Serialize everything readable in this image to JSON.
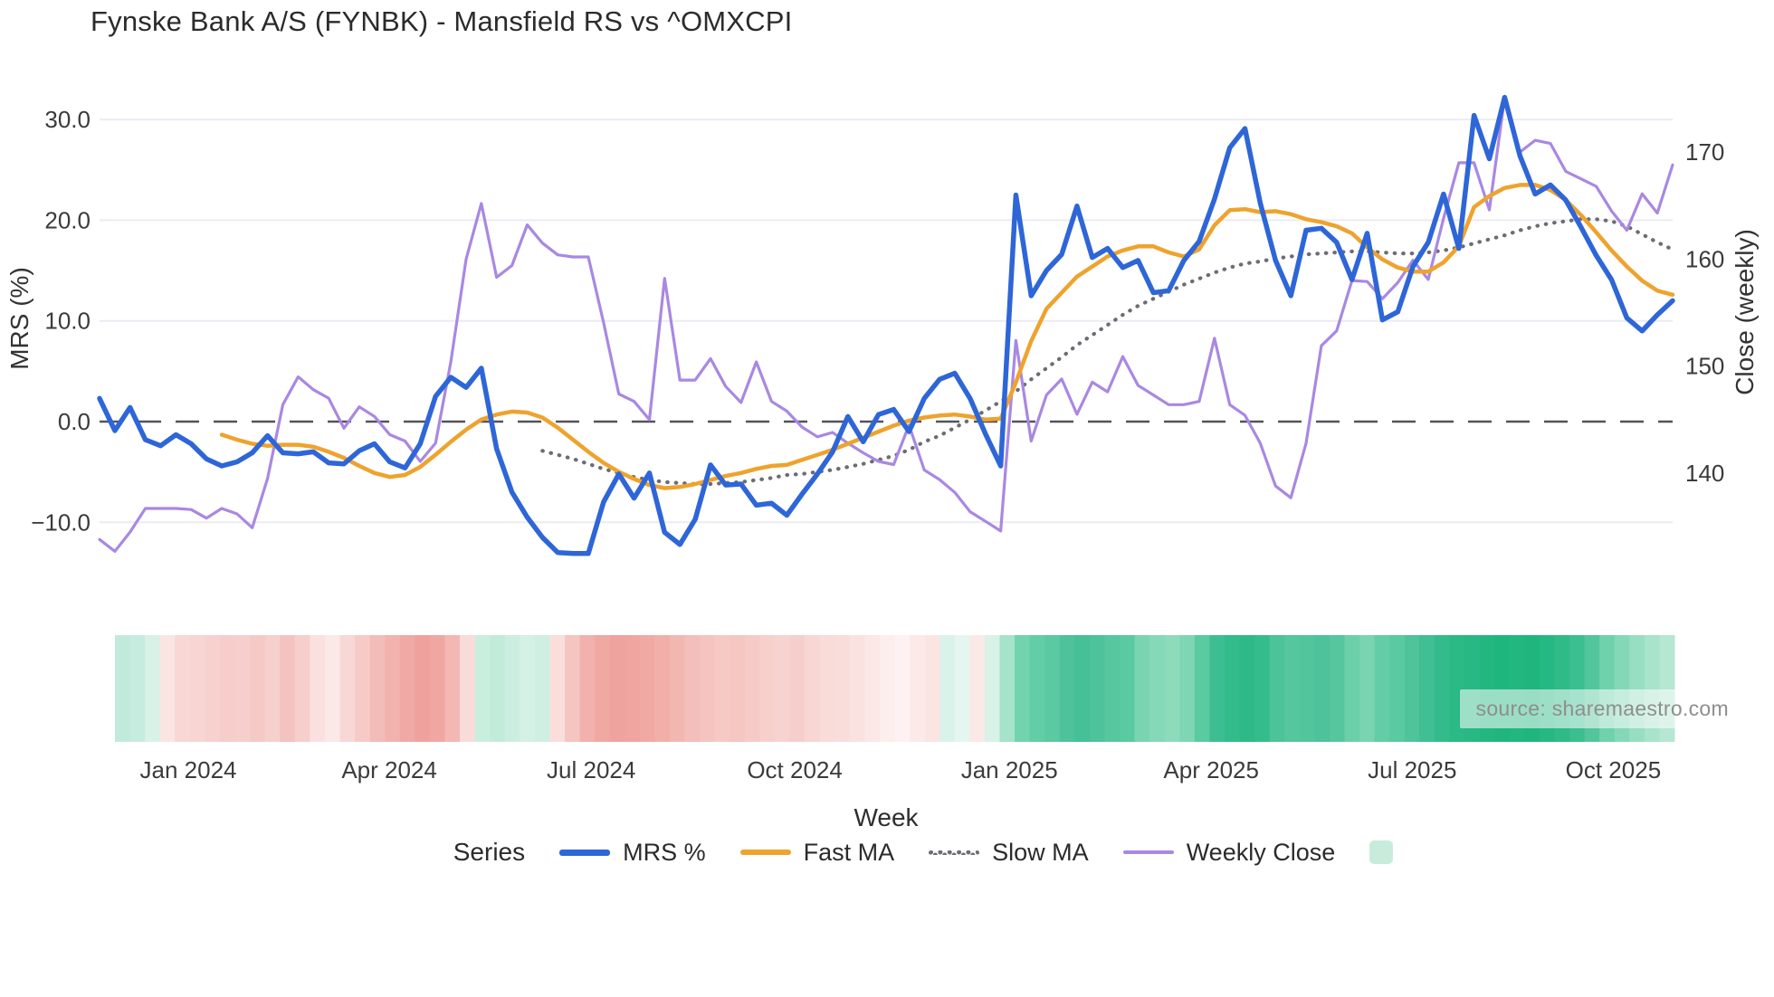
{
  "title": "Fynske Bank A/S (FYNBK) - Mansfield RS vs ^OMXCPI",
  "annotations": {
    "source": "source: sharemaestro.com"
  },
  "chart_data": {
    "type": "line",
    "title": "Fynske Bank A/S (FYNBK) - Mansfield RS vs ^OMXCPI",
    "grid": true,
    "legend_position": "bottom",
    "x_axis": {
      "label": "Week",
      "ticks": [
        {
          "label": "Jan 2024",
          "week": 5.81
        },
        {
          "label": "Apr 2024",
          "week": 18.97
        },
        {
          "label": "Jul 2024",
          "week": 32.19
        },
        {
          "label": "Oct 2024",
          "week": 45.52
        },
        {
          "label": "Jan 2025",
          "week": 59.57
        },
        {
          "label": "Apr 2025",
          "week": 72.79
        },
        {
          "label": "Jul 2025",
          "week": 85.95
        },
        {
          "label": "Oct 2025",
          "week": 99.11
        }
      ],
      "n_weeks": 104
    },
    "y_left": {
      "label": "MRS (%)",
      "ticks": [
        30,
        20,
        10,
        0,
        -10
      ],
      "tick_labels": [
        "30.0",
        "20.0",
        "10.0",
        "0.0",
        "−10.0"
      ],
      "range": [
        -17,
        34
      ]
    },
    "y_right": {
      "label": "Close (weekly)",
      "ticks": [
        170,
        160,
        150,
        140
      ],
      "tick_labels": [
        "170",
        "160",
        "150",
        "140"
      ],
      "range": [
        128,
        177
      ]
    },
    "zero_line": {
      "value": 0,
      "color": "#53535b",
      "style": "dashed"
    },
    "legend": {
      "title": "Series",
      "swatch_color": "#c8ecdb"
    },
    "series": [
      {
        "name": "MRS %",
        "axis": "left",
        "color": "#2e66d8",
        "style": "solid",
        "width": 5.5,
        "values": [
          2.3,
          -0.9,
          1.4,
          -1.8,
          -2.4,
          -1.3,
          -2.2,
          -3.7,
          -4.4,
          -4.0,
          -3.1,
          -1.4,
          -3.1,
          -3.2,
          -3.0,
          -4.1,
          -4.2,
          -2.9,
          -2.2,
          -4.0,
          -4.6,
          -2.2,
          2.5,
          4.4,
          3.4,
          5.3,
          -2.7,
          -7.0,
          -9.5,
          -11.5,
          -13.0,
          -13.1,
          -13.1,
          -8.0,
          -5.2,
          -7.6,
          -5.1,
          -11.0,
          -12.2,
          -9.7,
          -4.3,
          -6.3,
          -6.2,
          -8.3,
          -8.1,
          -9.3,
          -7.2,
          -5.2,
          -3.0,
          0.5,
          -2.0,
          0.7,
          1.2,
          -1.0,
          2.3,
          4.2,
          4.8,
          2.3,
          -1.2,
          -4.4,
          22.5,
          12.5,
          15.0,
          16.6,
          21.4,
          16.3,
          17.2,
          15.3,
          16.0,
          12.8,
          13.0,
          16.0,
          17.9,
          22.1,
          27.2,
          29.1,
          21.7,
          16.0,
          12.5,
          19.0,
          19.2,
          17.8,
          14.1,
          18.7,
          10.1,
          10.9,
          15.4,
          17.8,
          22.6,
          17.2,
          30.4,
          26.1,
          32.2,
          26.4,
          22.6,
          23.5,
          22.0,
          19.3,
          16.5,
          14.1,
          10.3,
          9.0,
          10.6,
          12.0
        ]
      },
      {
        "name": "Fast MA",
        "axis": "left",
        "color": "#eea32e",
        "style": "solid",
        "width": 4.5,
        "values": [
          null,
          null,
          null,
          null,
          null,
          null,
          null,
          null,
          -1.3,
          -1.8,
          -2.2,
          -2.4,
          -2.3,
          -2.3,
          -2.5,
          -3.0,
          -3.6,
          -4.4,
          -5.1,
          -5.5,
          -5.3,
          -4.5,
          -3.3,
          -2.0,
          -0.8,
          0.2,
          0.7,
          1.0,
          0.9,
          0.4,
          -0.6,
          -1.8,
          -3.0,
          -4.1,
          -5.0,
          -5.7,
          -6.3,
          -6.6,
          -6.5,
          -6.2,
          -5.8,
          -5.4,
          -5.1,
          -4.7,
          -4.4,
          -4.3,
          -3.8,
          -3.3,
          -2.8,
          -2.2,
          -1.6,
          -1.0,
          -0.4,
          0.1,
          0.4,
          0.6,
          0.7,
          0.5,
          0.2,
          0.3,
          3.9,
          8.0,
          11.2,
          12.8,
          14.4,
          15.4,
          16.4,
          17.0,
          17.4,
          17.4,
          16.8,
          16.4,
          17.1,
          19.5,
          21.0,
          21.1,
          20.8,
          20.9,
          20.6,
          20.1,
          19.8,
          19.4,
          18.7,
          17.3,
          16.1,
          15.3,
          14.9,
          14.9,
          15.8,
          17.4,
          21.3,
          22.4,
          23.2,
          23.5,
          23.5,
          23.0,
          22.0,
          20.5,
          18.8,
          17.0,
          15.4,
          14.0,
          13.0,
          12.6
        ]
      },
      {
        "name": "Slow MA",
        "axis": "left",
        "color": "#6c6c74",
        "style": "dotted",
        "width": 3.8,
        "values": [
          null,
          null,
          null,
          null,
          null,
          null,
          null,
          null,
          null,
          null,
          null,
          null,
          null,
          null,
          null,
          null,
          null,
          null,
          null,
          null,
          null,
          null,
          null,
          null,
          null,
          null,
          null,
          null,
          null,
          -2.9,
          -3.3,
          -3.7,
          -4.2,
          -4.7,
          -5.1,
          -5.5,
          -5.8,
          -6.0,
          -6.1,
          -6.2,
          -6.2,
          -6.1,
          -6.0,
          -5.8,
          -5.6,
          -5.3,
          -5.2,
          -5.0,
          -4.8,
          -4.5,
          -4.2,
          -3.8,
          -3.4,
          -2.8,
          -2.0,
          -1.4,
          -0.6,
          0.2,
          1.1,
          2.0,
          3.0,
          4.2,
          5.3,
          6.4,
          7.6,
          8.6,
          9.6,
          10.6,
          11.5,
          12.2,
          12.9,
          13.6,
          14.2,
          14.8,
          15.3,
          15.7,
          15.9,
          16.2,
          16.4,
          16.6,
          16.7,
          16.8,
          16.9,
          16.9,
          16.8,
          16.7,
          16.7,
          16.8,
          17.0,
          17.3,
          17.7,
          18.1,
          18.5,
          19.0,
          19.4,
          19.7,
          19.9,
          20.1,
          20.1,
          19.9,
          19.4,
          18.6,
          17.8,
          17.1
        ]
      },
      {
        "name": "Weekly Close",
        "axis": "right",
        "color": "#a988e2",
        "style": "solid",
        "width": 3.2,
        "values": [
          133.8,
          132.7,
          134.5,
          136.7,
          136.7,
          136.7,
          136.6,
          135.8,
          136.7,
          136.2,
          134.9,
          139.5,
          146.4,
          149.0,
          147.8,
          147.0,
          144.2,
          146.2,
          145.3,
          143.6,
          143.0,
          141.1,
          142.8,
          150.4,
          160.0,
          165.2,
          158.3,
          159.4,
          163.2,
          161.5,
          160.4,
          160.2,
          160.2,
          154.1,
          147.4,
          146.7,
          145.0,
          158.2,
          148.7,
          148.7,
          150.7,
          148.1,
          146.6,
          150.4,
          146.7,
          145.8,
          144.3,
          143.4,
          143.8,
          142.8,
          141.9,
          141.1,
          140.8,
          144.5,
          140.3,
          139.4,
          138.2,
          136.4,
          135.5,
          134.6,
          152.4,
          143.0,
          147.3,
          148.8,
          145.5,
          148.5,
          147.6,
          150.9,
          148.2,
          147.3,
          146.4,
          146.4,
          146.7,
          152.6,
          146.4,
          145.4,
          142.8,
          138.8,
          137.7,
          142.8,
          151.9,
          153.3,
          158.0,
          157.9,
          156.3,
          157.8,
          159.9,
          158.1,
          163.8,
          169.0,
          169.0,
          164.6,
          175.1,
          170.0,
          171.1,
          170.8,
          168.2,
          167.5,
          166.8,
          164.5,
          162.7,
          166.1,
          164.3,
          168.8
        ]
      }
    ],
    "heatmap_strip": {
      "description": "weekly red-green relative-strength heat band",
      "colors": [
        "#c2eadc",
        "#c6ecdf",
        "#d8f2e7",
        "#fbe5e3",
        "#f8d7d4",
        "#f8d5d2",
        "#f7d1ce",
        "#f6cdca",
        "#f6cfcc",
        "#f5c9c5",
        "#f6d0cd",
        "#f4c3bf",
        "#f6cecb",
        "#fae1df",
        "#fbe9e7",
        "#f8d8d5",
        "#f6cbc7",
        "#f3bcb8",
        "#f2b3ae",
        "#f0a9a4",
        "#efa29d",
        "#f0a7a2",
        "#f3b8b3",
        "#f9dcd9",
        "#c9eede",
        "#c2ebd9",
        "#cceee0",
        "#d5f1e5",
        "#cfefe2",
        "#f9dedc",
        "#f5c5c1",
        "#f2b1ac",
        "#f0a8a3",
        "#efa39e",
        "#f0a5a0",
        "#f1a9a4",
        "#f2afaa",
        "#f3b7b2",
        "#f4beba",
        "#f5c4c0",
        "#f6c9c5",
        "#f5c6c2",
        "#f6cbc7",
        "#f7d0cc",
        "#f7d3d0",
        "#f6cecb",
        "#f8d6d3",
        "#f9dbd8",
        "#f9ddda",
        "#fae2e0",
        "#fbe7e5",
        "#fceeec",
        "#fdf2f1",
        "#fceae8",
        "#fbe5e3",
        "#daf3ea",
        "#e4f6ef",
        "#fbe9e7",
        "#d8f2e8",
        "#a5e3cb",
        "#72d3af",
        "#62cda6",
        "#5bc9a1",
        "#4ec29a",
        "#46c096",
        "#4ec29a",
        "#57c79f",
        "#5acaa2",
        "#7ad4b2",
        "#85d8b8",
        "#8edbbc",
        "#7fd6b5",
        "#5acaa1",
        "#3dbe92",
        "#32bb8b",
        "#2eba88",
        "#35bc8d",
        "#4cc399",
        "#55c69e",
        "#52c59c",
        "#4ec29a",
        "#56c69e",
        "#6bd0aa",
        "#79d4b1",
        "#62cda6",
        "#5acaa1",
        "#4fc39a",
        "#3fbf93",
        "#33bb8c",
        "#2bb985",
        "#27b883",
        "#23b780",
        "#1fb67e",
        "#22b77f",
        "#1eb67d",
        "#26b882",
        "#2fba88",
        "#3bbe90",
        "#52c59c",
        "#6fd2ac",
        "#84d8b7",
        "#97dec2",
        "#a8e3cb",
        "#b5e7d2"
      ]
    }
  }
}
